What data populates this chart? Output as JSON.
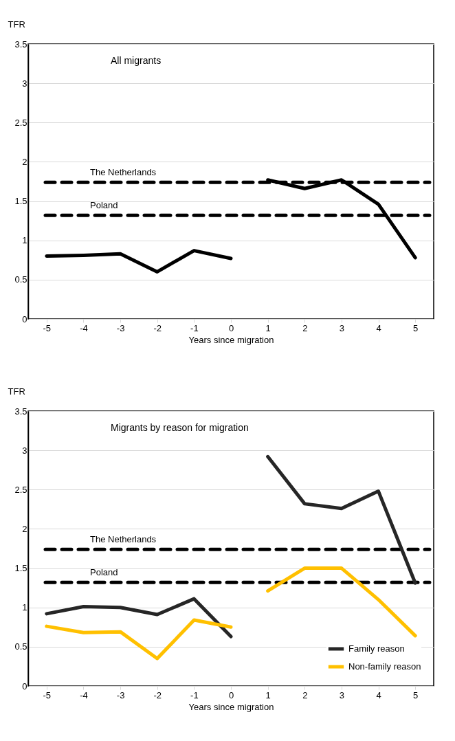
{
  "chart_data": [
    {
      "type": "line",
      "title": "All migrants",
      "xlabel": "Years since migration",
      "ylabel": "TFR",
      "xlim": [
        -5.5,
        5.5
      ],
      "xticks": [
        -5,
        -4,
        -3,
        -2,
        -1,
        0,
        1,
        2,
        3,
        4,
        5
      ],
      "ylim": [
        0,
        3.5
      ],
      "yticks": [
        0,
        0.5,
        1,
        1.5,
        2,
        2.5,
        3,
        3.5
      ],
      "grid": "y",
      "line_style": "solid",
      "marker": "none",
      "series": [
        {
          "color": "#000000",
          "x": [
            -5,
            -4,
            -3,
            -2,
            -1,
            0
          ],
          "values": [
            0.8,
            0.81,
            0.83,
            0.6,
            0.87,
            0.77
          ]
        },
        {
          "color": "#000000",
          "x": [
            1,
            2,
            3,
            4,
            5
          ],
          "values": [
            1.77,
            1.66,
            1.77,
            1.46,
            0.78
          ]
        }
      ],
      "ref_lines": [
        {
          "axis": "y",
          "value": 1.74,
          "label": "The Netherlands",
          "line_style": "dashed"
        },
        {
          "axis": "y",
          "value": 1.32,
          "label": "Poland",
          "line_style": "dashed"
        }
      ]
    },
    {
      "type": "line",
      "title": "Migrants by reason for migration",
      "xlabel": "Years since migration",
      "ylabel": "TFR",
      "xlim": [
        -5.5,
        5.5
      ],
      "xticks": [
        -5,
        -4,
        -3,
        -2,
        -1,
        0,
        1,
        2,
        3,
        4,
        5
      ],
      "ylim": [
        0,
        3.5
      ],
      "yticks": [
        0,
        0.5,
        1,
        1.5,
        2,
        2.5,
        3,
        3.5
      ],
      "grid": "y",
      "line_style": "solid",
      "marker": "none",
      "legend": "bottom right",
      "series": [
        {
          "name": "Family reason",
          "color": "#262626",
          "x": [
            -5,
            -4,
            -3,
            -2,
            -1,
            0
          ],
          "values": [
            0.92,
            1.01,
            1.0,
            0.91,
            1.11,
            0.63
          ]
        },
        {
          "color": "#262626",
          "x": [
            1,
            2,
            3,
            4,
            5
          ],
          "values": [
            2.92,
            2.32,
            2.26,
            2.48,
            1.31
          ]
        },
        {
          "name": "Non-family reason",
          "color": "#ffc000",
          "x": [
            -5,
            -4,
            -3,
            -2,
            -1,
            0
          ],
          "values": [
            0.76,
            0.68,
            0.69,
            0.35,
            0.84,
            0.75
          ]
        },
        {
          "color": "#ffc000",
          "x": [
            1,
            2,
            3,
            4,
            5
          ],
          "values": [
            1.21,
            1.5,
            1.5,
            1.1,
            0.64
          ]
        }
      ],
      "ref_lines": [
        {
          "axis": "y",
          "value": 1.74,
          "label": "The Netherlands",
          "line_style": "dashed"
        },
        {
          "axis": "y",
          "value": 1.32,
          "label": "Poland",
          "line_style": "dashed"
        }
      ]
    }
  ]
}
